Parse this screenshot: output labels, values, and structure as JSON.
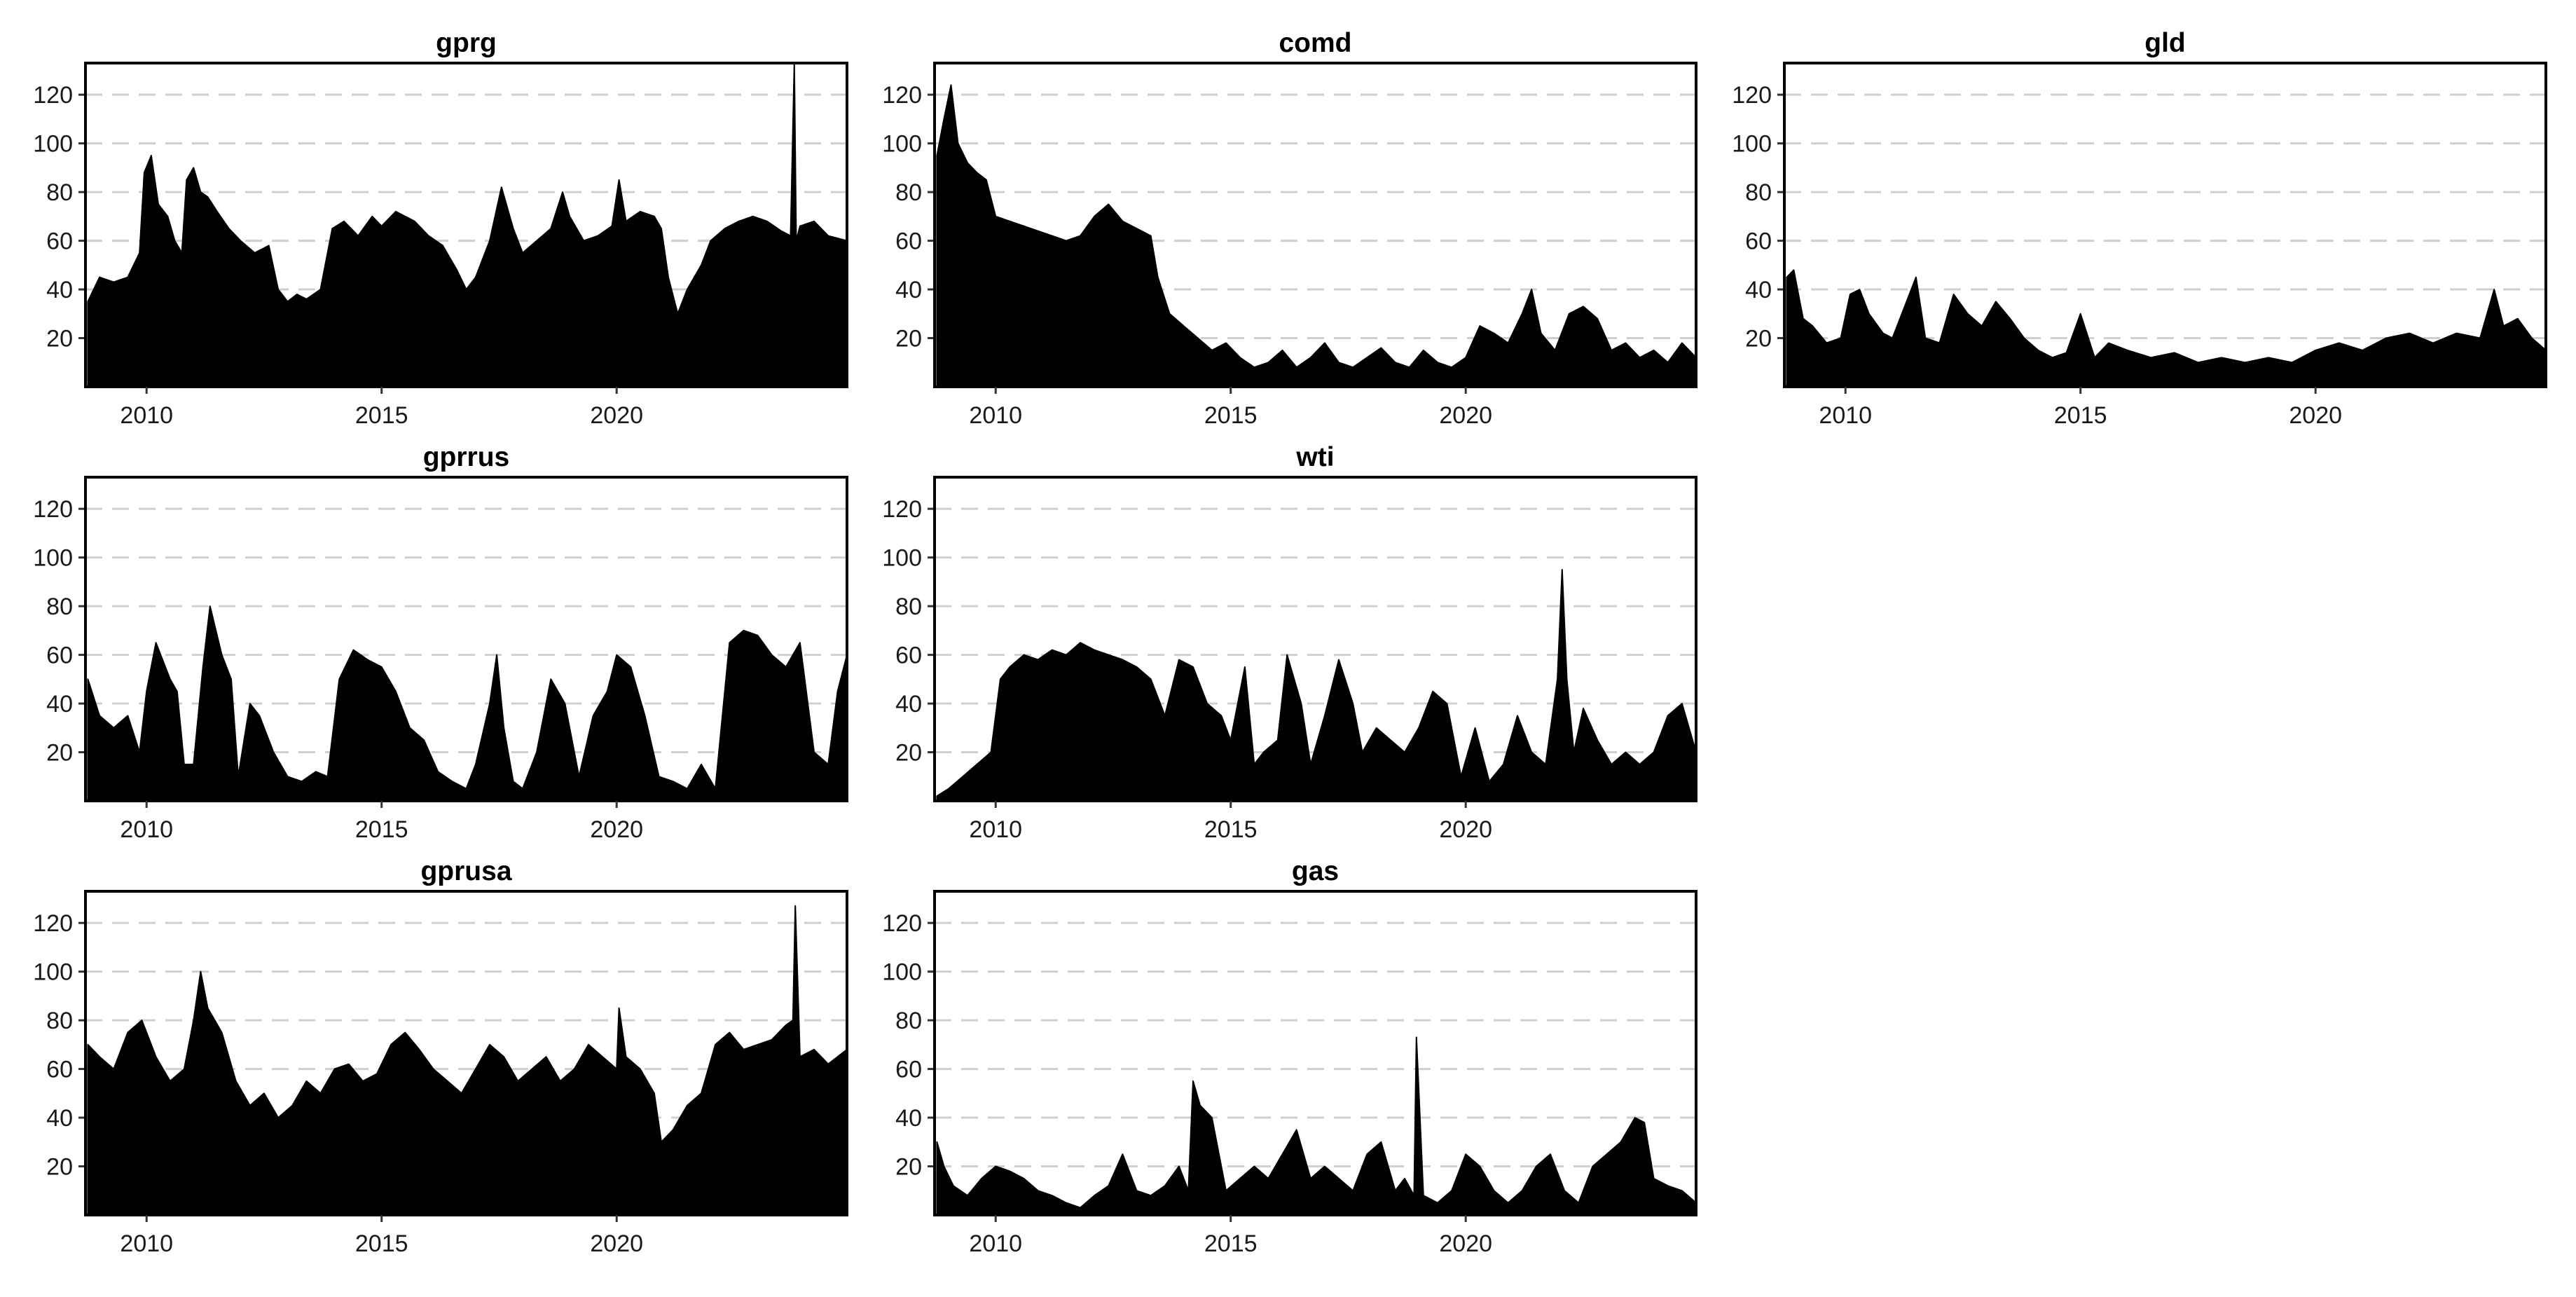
{
  "chart_data": [
    {
      "type": "area",
      "title": "gprg",
      "xlabel": "",
      "ylabel": "",
      "x_ticks": [
        "2010",
        "2015",
        "2020"
      ],
      "y_ticks": [
        "20",
        "40",
        "60",
        "80",
        "100",
        "120"
      ],
      "xlim": [
        2008.7,
        2024.9
      ],
      "ylim": [
        0,
        133
      ],
      "grid": "horizontal dashed",
      "series": [
        {
          "color": "#000000",
          "x": [
            2008.75,
            2009.0,
            2009.3,
            2009.6,
            2009.85,
            2009.95,
            2010.1,
            2010.25,
            2010.45,
            2010.6,
            2010.75,
            2010.85,
            2011.0,
            2011.15,
            2011.3,
            2011.5,
            2011.75,
            2012.0,
            2012.3,
            2012.6,
            2012.8,
            2013.0,
            2013.2,
            2013.4,
            2013.7,
            2013.95,
            2014.2,
            2014.5,
            2014.8,
            2015.0,
            2015.3,
            2015.7,
            2016.0,
            2016.3,
            2016.6,
            2016.8,
            2017.0,
            2017.3,
            2017.55,
            2017.8,
            2018.0,
            2018.3,
            2018.6,
            2018.85,
            2019.0,
            2019.3,
            2019.6,
            2019.9,
            2020.05,
            2020.2,
            2020.5,
            2020.8,
            2020.95,
            2021.1,
            2021.3,
            2021.5,
            2021.8,
            2022.0,
            2022.3,
            2022.6,
            2022.9,
            2023.2,
            2023.5,
            2023.7,
            2023.78,
            2023.82,
            2023.9,
            2024.2,
            2024.5,
            2024.9
          ],
          "values": [
            35,
            45,
            43,
            45,
            55,
            88,
            95,
            75,
            70,
            60,
            55,
            85,
            90,
            80,
            78,
            72,
            65,
            60,
            55,
            58,
            40,
            35,
            38,
            36,
            40,
            65,
            68,
            62,
            70,
            66,
            72,
            68,
            62,
            58,
            48,
            40,
            45,
            60,
            82,
            65,
            55,
            60,
            65,
            80,
            70,
            60,
            62,
            66,
            85,
            68,
            72,
            70,
            65,
            45,
            30,
            40,
            50,
            60,
            65,
            68,
            70,
            68,
            64,
            62,
            133,
            60,
            66,
            68,
            62,
            60
          ]
        }
      ]
    },
    {
      "type": "area",
      "title": "comd",
      "xlabel": "",
      "ylabel": "",
      "x_ticks": [
        "2010",
        "2015",
        "2020"
      ],
      "y_ticks": [
        "20",
        "40",
        "60",
        "80",
        "100",
        "120"
      ],
      "xlim": [
        2008.7,
        2024.9
      ],
      "ylim": [
        0,
        133
      ],
      "grid": "horizontal dashed",
      "series": [
        {
          "color": "#000000",
          "x": [
            2008.75,
            2008.9,
            2009.05,
            2009.2,
            2009.4,
            2009.6,
            2009.8,
            2010.0,
            2010.3,
            2010.6,
            2010.9,
            2011.2,
            2011.5,
            2011.8,
            2012.1,
            2012.4,
            2012.7,
            2013.0,
            2013.3,
            2013.45,
            2013.7,
            2014.0,
            2014.3,
            2014.6,
            2014.9,
            2015.2,
            2015.5,
            2015.8,
            2016.1,
            2016.4,
            2016.7,
            2017.0,
            2017.3,
            2017.6,
            2017.9,
            2018.2,
            2018.5,
            2018.8,
            2019.1,
            2019.4,
            2019.7,
            2020.0,
            2020.3,
            2020.6,
            2020.9,
            2021.2,
            2021.4,
            2021.6,
            2021.9,
            2022.2,
            2022.5,
            2022.8,
            2023.1,
            2023.4,
            2023.7,
            2024.0,
            2024.3,
            2024.6,
            2024.9
          ],
          "values": [
            95,
            110,
            124,
            100,
            92,
            88,
            85,
            70,
            68,
            66,
            64,
            62,
            60,
            62,
            70,
            75,
            68,
            65,
            62,
            45,
            30,
            25,
            20,
            15,
            18,
            12,
            8,
            10,
            15,
            8,
            12,
            18,
            10,
            8,
            12,
            16,
            10,
            8,
            15,
            10,
            8,
            12,
            25,
            22,
            18,
            30,
            40,
            22,
            15,
            30,
            33,
            28,
            15,
            18,
            12,
            15,
            10,
            18,
            12
          ]
        }
      ]
    },
    {
      "type": "area",
      "title": "gld",
      "xlabel": "",
      "ylabel": "",
      "x_ticks": [
        "2010",
        "2015",
        "2020"
      ],
      "y_ticks": [
        "20",
        "40",
        "60",
        "80",
        "100",
        "120"
      ],
      "xlim": [
        2008.7,
        2024.9
      ],
      "ylim": [
        0,
        133
      ],
      "grid": "horizontal dashed",
      "series": [
        {
          "color": "#000000",
          "x": [
            2008.75,
            2008.9,
            2009.1,
            2009.3,
            2009.6,
            2009.9,
            2010.1,
            2010.3,
            2010.5,
            2010.8,
            2011.0,
            2011.3,
            2011.5,
            2011.7,
            2012.0,
            2012.3,
            2012.6,
            2012.9,
            2013.2,
            2013.5,
            2013.8,
            2014.1,
            2014.4,
            2014.7,
            2015.0,
            2015.3,
            2015.6,
            2016.0,
            2016.5,
            2017.0,
            2017.5,
            2018.0,
            2018.5,
            2019.0,
            2019.5,
            2020.0,
            2020.5,
            2021.0,
            2021.5,
            2022.0,
            2022.5,
            2023.0,
            2023.5,
            2023.8,
            2024.0,
            2024.3,
            2024.6,
            2024.9
          ],
          "values": [
            45,
            48,
            28,
            25,
            18,
            20,
            38,
            40,
            30,
            22,
            20,
            35,
            45,
            20,
            18,
            38,
            30,
            25,
            35,
            28,
            20,
            15,
            12,
            14,
            30,
            12,
            18,
            15,
            12,
            14,
            10,
            12,
            10,
            12,
            10,
            15,
            18,
            15,
            20,
            22,
            18,
            22,
            20,
            40,
            25,
            28,
            20,
            15
          ]
        }
      ]
    },
    {
      "type": "area",
      "title": "gprrus",
      "xlabel": "",
      "ylabel": "",
      "x_ticks": [
        "2010",
        "2015",
        "2020"
      ],
      "y_ticks": [
        "20",
        "40",
        "60",
        "80",
        "100",
        "120"
      ],
      "xlim": [
        2008.7,
        2024.9
      ],
      "ylim": [
        0,
        133
      ],
      "grid": "horizontal dashed",
      "series": [
        {
          "color": "#000000",
          "x": [
            2008.75,
            2009.0,
            2009.3,
            2009.6,
            2009.85,
            2010.0,
            2010.2,
            2010.5,
            2010.65,
            2010.8,
            2011.0,
            2011.2,
            2011.35,
            2011.6,
            2011.8,
            2011.95,
            2012.2,
            2012.4,
            2012.7,
            2013.0,
            2013.3,
            2013.6,
            2013.85,
            2014.1,
            2014.4,
            2014.7,
            2015.0,
            2015.3,
            2015.6,
            2015.9,
            2016.2,
            2016.5,
            2016.8,
            2017.0,
            2017.3,
            2017.45,
            2017.6,
            2017.8,
            2018.0,
            2018.3,
            2018.6,
            2018.9,
            2019.2,
            2019.5,
            2019.8,
            2020.0,
            2020.3,
            2020.6,
            2020.9,
            2021.2,
            2021.5,
            2021.8,
            2022.1,
            2022.4,
            2022.7,
            2023.0,
            2023.3,
            2023.6,
            2023.9,
            2024.2,
            2024.5,
            2024.7,
            2024.9
          ],
          "values": [
            50,
            35,
            30,
            35,
            20,
            45,
            65,
            50,
            45,
            15,
            15,
            55,
            80,
            60,
            50,
            10,
            40,
            35,
            20,
            10,
            8,
            12,
            10,
            50,
            62,
            58,
            55,
            45,
            30,
            25,
            12,
            8,
            5,
            15,
            40,
            60,
            30,
            8,
            5,
            20,
            50,
            40,
            10,
            35,
            45,
            60,
            55,
            35,
            10,
            8,
            5,
            15,
            5,
            65,
            70,
            68,
            60,
            55,
            65,
            20,
            15,
            45,
            60
          ]
        }
      ]
    },
    {
      "type": "area",
      "title": "wti",
      "xlabel": "",
      "ylabel": "",
      "x_ticks": [
        "2010",
        "2015",
        "2020"
      ],
      "y_ticks": [
        "20",
        "40",
        "60",
        "80",
        "100",
        "120"
      ],
      "xlim": [
        2008.7,
        2024.9
      ],
      "ylim": [
        0,
        133
      ],
      "grid": "horizontal dashed",
      "series": [
        {
          "color": "#000000",
          "x": [
            2008.75,
            2009.0,
            2009.3,
            2009.6,
            2009.9,
            2010.1,
            2010.3,
            2010.6,
            2010.9,
            2011.2,
            2011.5,
            2011.8,
            2012.1,
            2012.4,
            2012.7,
            2013.0,
            2013.3,
            2013.6,
            2013.9,
            2014.2,
            2014.5,
            2014.8,
            2015.0,
            2015.3,
            2015.5,
            2015.7,
            2016.0,
            2016.2,
            2016.5,
            2016.7,
            2017.0,
            2017.3,
            2017.6,
            2017.8,
            2018.1,
            2018.4,
            2018.7,
            2019.0,
            2019.3,
            2019.6,
            2019.9,
            2020.2,
            2020.5,
            2020.8,
            2021.1,
            2021.4,
            2021.7,
            2021.95,
            2022.05,
            2022.15,
            2022.3,
            2022.5,
            2022.8,
            2023.1,
            2023.4,
            2023.7,
            2024.0,
            2024.3,
            2024.6,
            2024.9
          ],
          "values": [
            2,
            5,
            10,
            15,
            20,
            50,
            55,
            60,
            58,
            62,
            60,
            65,
            62,
            60,
            58,
            55,
            50,
            35,
            58,
            55,
            40,
            35,
            25,
            55,
            15,
            20,
            25,
            60,
            40,
            15,
            35,
            58,
            40,
            20,
            30,
            25,
            20,
            30,
            45,
            40,
            10,
            30,
            8,
            15,
            35,
            20,
            15,
            50,
            95,
            50,
            20,
            38,
            25,
            15,
            20,
            15,
            20,
            35,
            40,
            20
          ]
        }
      ]
    },
    {
      "type": "area",
      "title": "gprusa",
      "xlabel": "",
      "ylabel": "",
      "x_ticks": [
        "2010",
        "2015",
        "2020"
      ],
      "y_ticks": [
        "20",
        "40",
        "60",
        "80",
        "100",
        "120"
      ],
      "xlim": [
        2008.7,
        2024.9
      ],
      "ylim": [
        0,
        133
      ],
      "grid": "horizontal dashed",
      "series": [
        {
          "color": "#000000",
          "x": [
            2008.75,
            2009.0,
            2009.3,
            2009.6,
            2009.9,
            2010.2,
            2010.5,
            2010.8,
            2011.0,
            2011.15,
            2011.3,
            2011.6,
            2011.9,
            2012.2,
            2012.5,
            2012.8,
            2013.1,
            2013.4,
            2013.7,
            2014.0,
            2014.3,
            2014.6,
            2014.9,
            2015.2,
            2015.5,
            2015.8,
            2016.1,
            2016.4,
            2016.7,
            2017.0,
            2017.3,
            2017.6,
            2017.9,
            2018.2,
            2018.5,
            2018.8,
            2019.1,
            2019.4,
            2019.7,
            2020.0,
            2020.05,
            2020.2,
            2020.5,
            2020.8,
            2020.95,
            2021.2,
            2021.5,
            2021.8,
            2022.1,
            2022.4,
            2022.7,
            2023.0,
            2023.3,
            2023.6,
            2023.75,
            2023.8,
            2023.9,
            2024.2,
            2024.5,
            2024.9
          ],
          "values": [
            70,
            65,
            60,
            75,
            80,
            65,
            55,
            60,
            80,
            100,
            85,
            75,
            55,
            45,
            50,
            40,
            45,
            55,
            50,
            60,
            62,
            55,
            58,
            70,
            75,
            68,
            60,
            55,
            50,
            60,
            70,
            65,
            55,
            60,
            65,
            55,
            60,
            70,
            65,
            60,
            85,
            65,
            60,
            50,
            30,
            35,
            45,
            50,
            70,
            75,
            68,
            70,
            72,
            78,
            80,
            127,
            65,
            68,
            62,
            68
          ]
        }
      ]
    },
    {
      "type": "area",
      "title": "gas",
      "xlabel": "",
      "ylabel": "",
      "x_ticks": [
        "2010",
        "2015",
        "2020"
      ],
      "y_ticks": [
        "20",
        "40",
        "60",
        "80",
        "100",
        "120"
      ],
      "xlim": [
        2008.7,
        2024.9
      ],
      "ylim": [
        0,
        133
      ],
      "grid": "horizontal dashed",
      "series": [
        {
          "color": "#000000",
          "x": [
            2008.75,
            2008.9,
            2009.1,
            2009.4,
            2009.7,
            2010.0,
            2010.3,
            2010.6,
            2010.9,
            2011.2,
            2011.5,
            2011.8,
            2012.1,
            2012.4,
            2012.7,
            2013.0,
            2013.3,
            2013.6,
            2013.9,
            2014.1,
            2014.2,
            2014.35,
            2014.6,
            2014.9,
            2015.2,
            2015.5,
            2015.8,
            2016.1,
            2016.4,
            2016.7,
            2017.0,
            2017.3,
            2017.6,
            2017.9,
            2018.2,
            2018.5,
            2018.7,
            2018.9,
            2018.95,
            2019.1,
            2019.4,
            2019.7,
            2020.0,
            2020.3,
            2020.6,
            2020.9,
            2021.2,
            2021.5,
            2021.8,
            2022.1,
            2022.4,
            2022.7,
            2023.0,
            2023.3,
            2023.6,
            2023.8,
            2024.0,
            2024.3,
            2024.6,
            2024.9
          ],
          "values": [
            30,
            20,
            12,
            8,
            15,
            20,
            18,
            15,
            10,
            8,
            5,
            3,
            8,
            12,
            25,
            10,
            8,
            12,
            20,
            10,
            55,
            45,
            40,
            10,
            15,
            20,
            15,
            25,
            35,
            15,
            20,
            15,
            10,
            25,
            30,
            10,
            15,
            8,
            73,
            8,
            5,
            10,
            25,
            20,
            10,
            5,
            10,
            20,
            25,
            10,
            5,
            20,
            25,
            30,
            40,
            38,
            15,
            12,
            10,
            5
          ]
        }
      ]
    }
  ]
}
